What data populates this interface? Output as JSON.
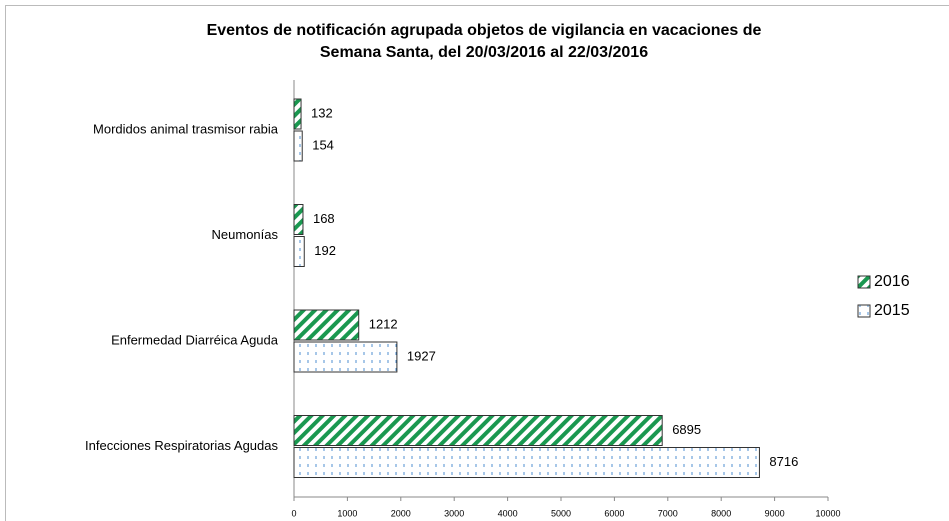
{
  "chart_data": {
    "type": "barh",
    "title": [
      "Eventos de notificación agrupada objetos de vigilancia en vacaciones de",
      "Semana Santa,   del 20/03/2016 al 22/03/2016"
    ],
    "categories": [
      "Mordidos animal trasmisor rabia",
      "Neumonías",
      "Enfermedad Diarréica Aguda",
      "Infecciones Respiratorias Agudas"
    ],
    "series": [
      {
        "name": "2016",
        "color": "#1a9850",
        "values": [
          132,
          168,
          1212,
          6895
        ]
      },
      {
        "name": "2015",
        "color": "#4f8fd0",
        "values": [
          154,
          192,
          1927,
          8716
        ]
      }
    ],
    "xlim": [
      0,
      10000
    ],
    "xticks": [
      0,
      1000,
      2000,
      3000,
      4000,
      5000,
      6000,
      7000,
      8000,
      9000,
      10000
    ],
    "legend": "right"
  }
}
